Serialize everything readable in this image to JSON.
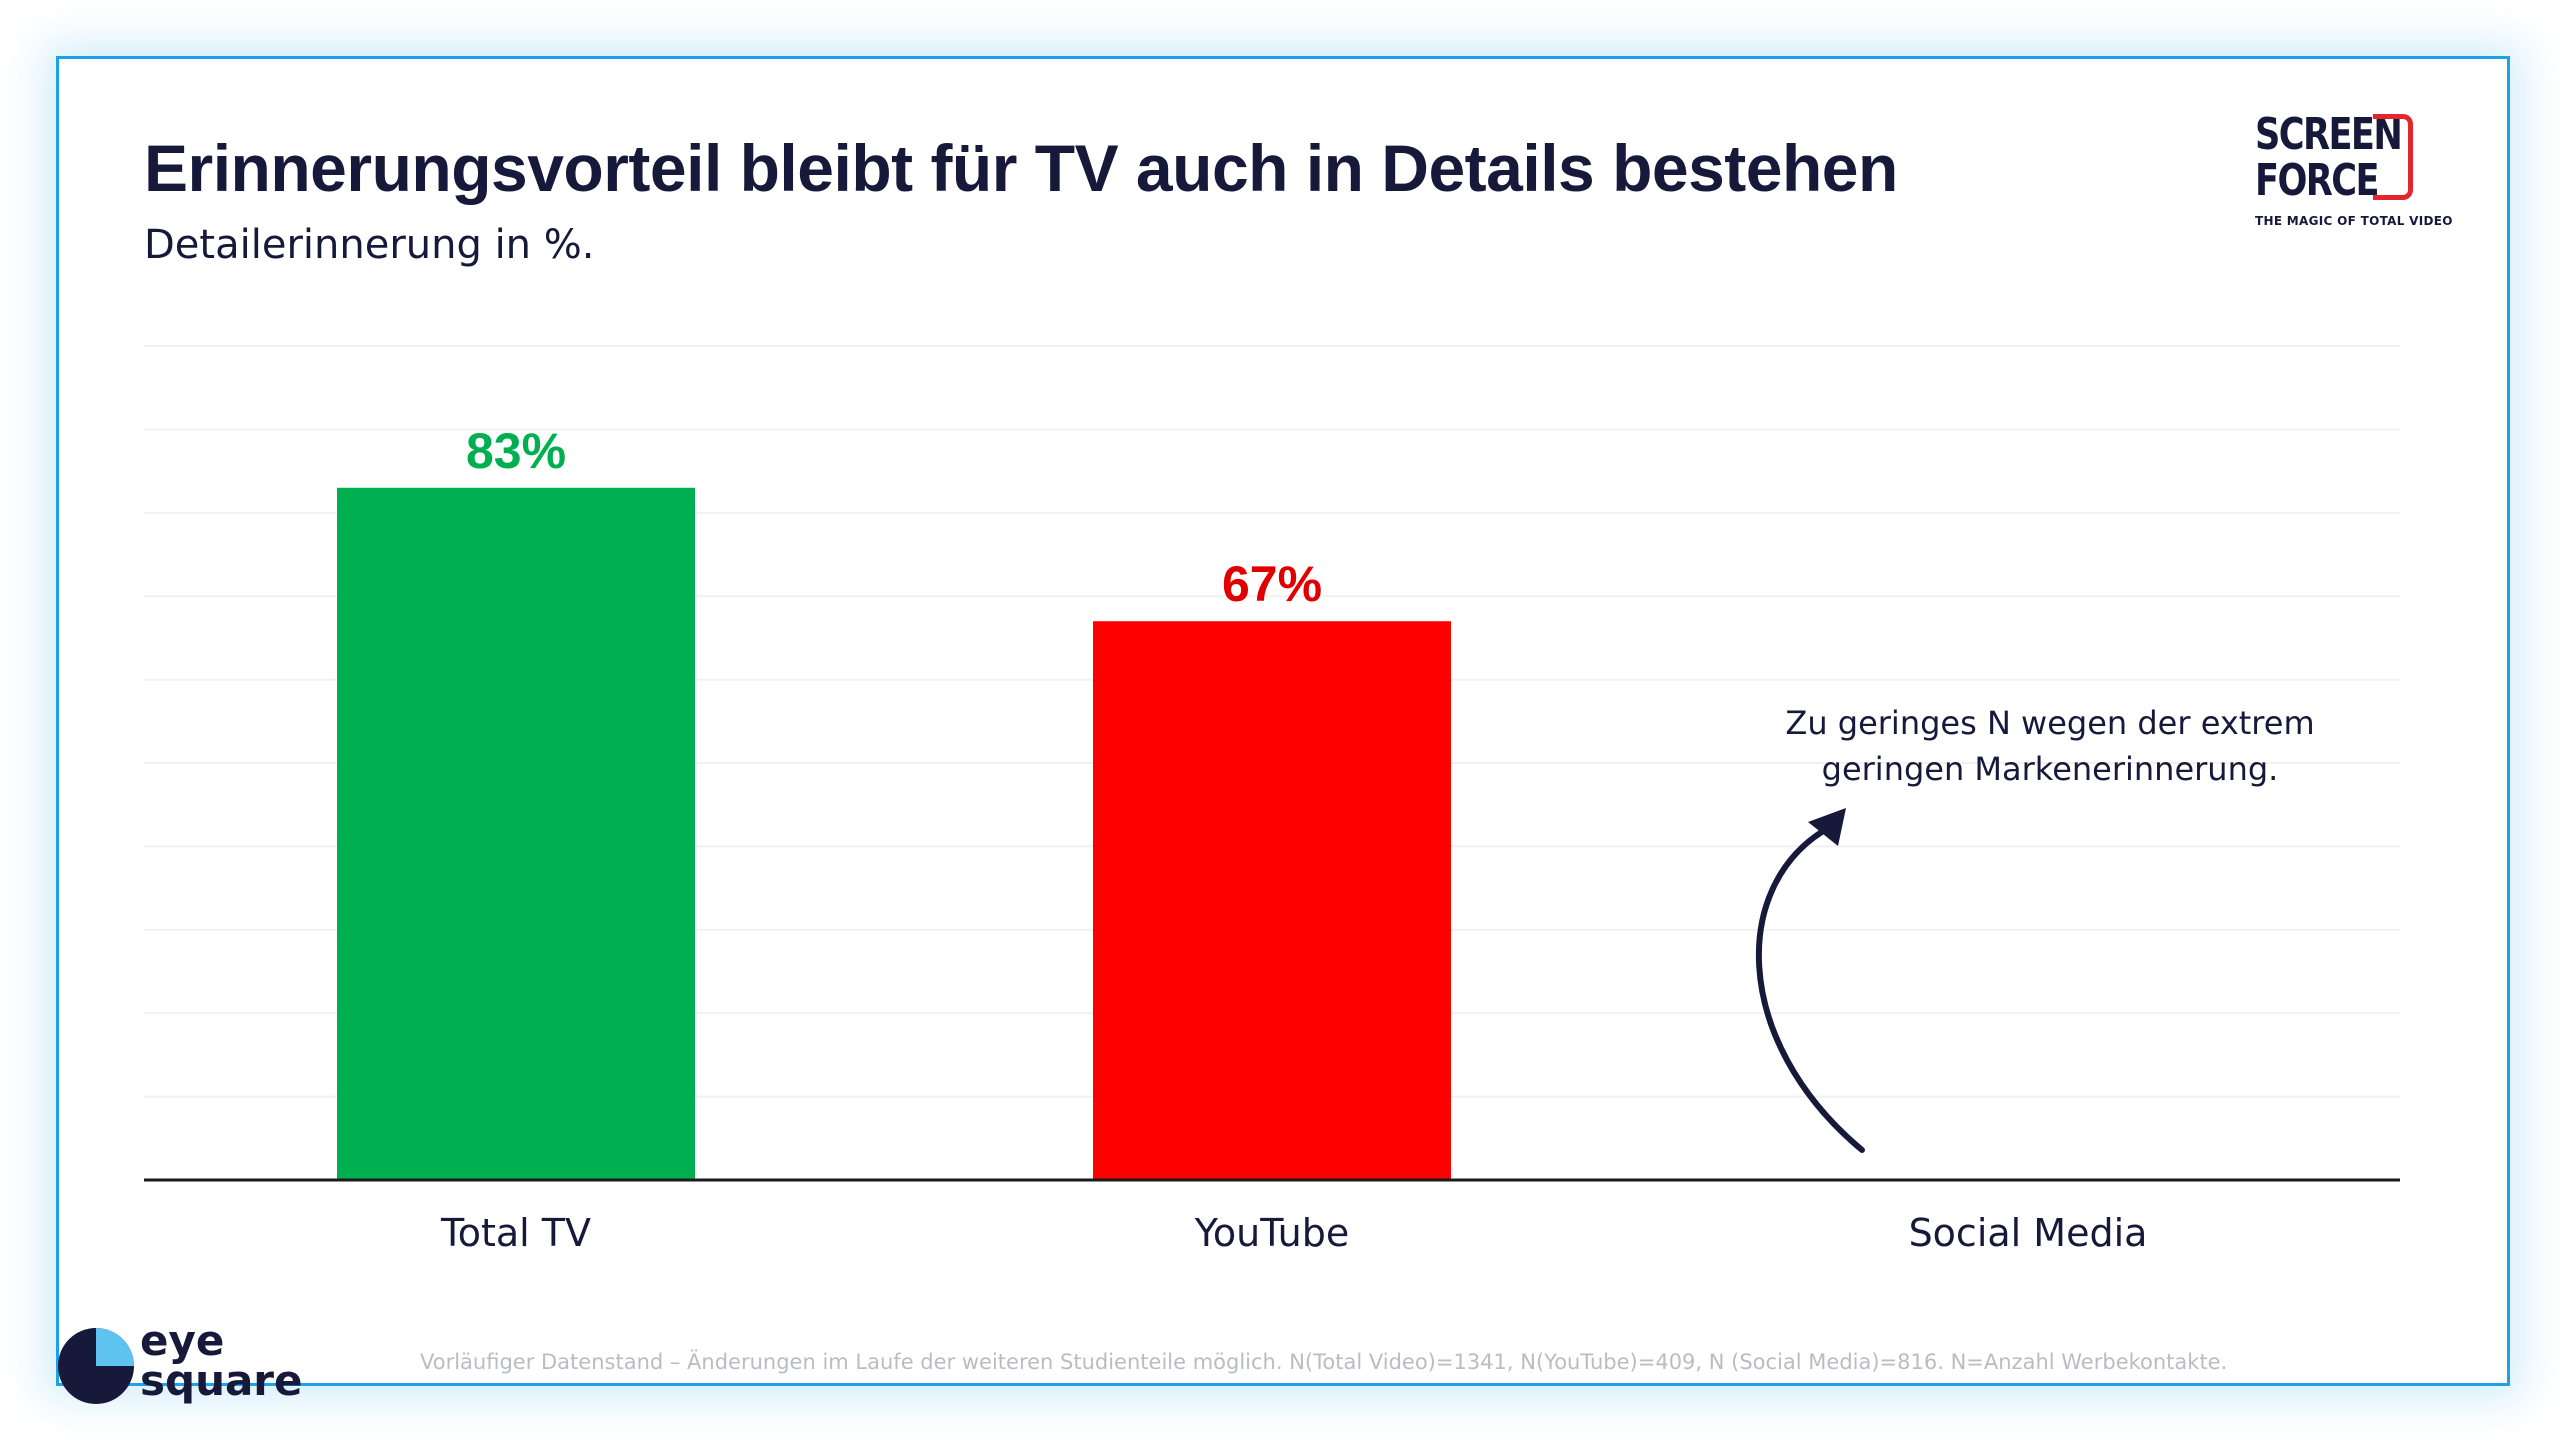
{
  "header": {
    "title": "Erinnerungsvorteil bleibt für TV auch in Details bestehen",
    "subtitle": "Detailerinnerung in %."
  },
  "logos": {
    "top_right": {
      "line1": "SCREEN",
      "line2": "FORCE",
      "tagline": "THE MAGIC OF TOTAL VIDEO"
    },
    "bottom_left": {
      "line1": "eye",
      "line2": "square"
    }
  },
  "chart_data": {
    "type": "bar",
    "categories": [
      "Total TV",
      "YouTube",
      "Social Media"
    ],
    "values": [
      83,
      67,
      null
    ],
    "value_labels": [
      "83%",
      "67%",
      ""
    ],
    "bar_colors": [
      "#00b050",
      "#ff0000",
      null
    ],
    "label_colors": [
      "#00b050",
      "#e00000",
      null
    ],
    "ylim": [
      0,
      100
    ],
    "grid": true,
    "annotation": "Zu geringes N wegen der extrem geringen Markenerinnerung."
  },
  "footnote": "Vorläufiger Datenstand – Änderungen im Laufe der weiteren Studienteile möglich. N(Total Video)=1341, N(YouTube)=409, N (Social Media)=816. N=Anzahl Werbekontakte.",
  "colors": {
    "accent_blue": "#1da1e8",
    "text_dark": "#16193a",
    "brand_red": "#e3262b"
  }
}
